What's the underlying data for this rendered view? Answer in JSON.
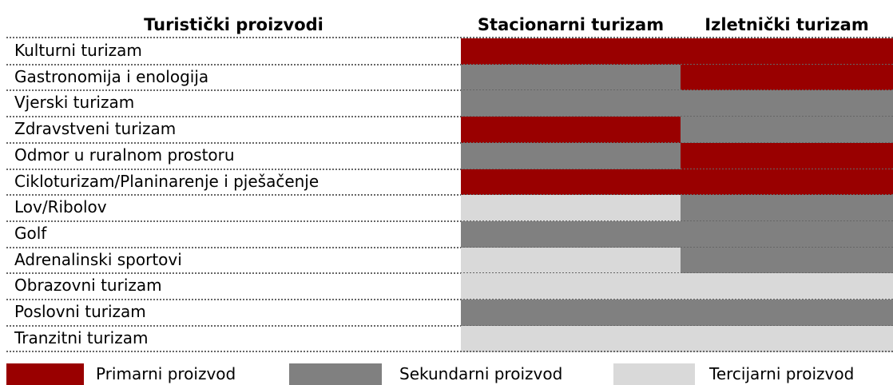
{
  "table": {
    "headers": [
      "Turistički proizvodi",
      "Stacionarni turizam",
      "Izletnički turizam"
    ],
    "rows": [
      {
        "label": "Kulturni turizam",
        "cells": [
          "Primarni proizvod",
          "Primarni proizvod"
        ]
      },
      {
        "label": "Gastronomija i enologija",
        "cells": [
          "Sekundarni proizvod",
          "Primarni proizvod"
        ]
      },
      {
        "label": "Vjerski turizam",
        "cells": [
          "Sekundarni proizvod",
          "Sekundarni proizvod"
        ]
      },
      {
        "label": "Zdravstveni turizam",
        "cells": [
          "Primarni proizvod",
          "Sekundarni proizvod"
        ]
      },
      {
        "label": "Odmor u ruralnom prostoru",
        "cells": [
          "Sekundarni proizvod",
          "Primarni proizvod"
        ]
      },
      {
        "label": "Cikloturizam/Planinarenje i pješačenje",
        "cells": [
          "Primarni proizvod",
          "Primarni proizvod"
        ]
      },
      {
        "label": "Lov/Ribolov",
        "cells": [
          "Tercijarni proizvod",
          "Sekundarni proizvod"
        ]
      },
      {
        "label": "Golf",
        "cells": [
          "Sekundarni proizvod",
          "Sekundarni proizvod"
        ]
      },
      {
        "label": "Adrenalinski sportovi",
        "cells": [
          "Tercijarni proizvod",
          "Sekundarni proizvod"
        ]
      },
      {
        "label": "Obrazovni turizam",
        "cells": [
          "Tercijarni proizvod",
          "Tercijarni proizvod"
        ]
      },
      {
        "label": "Poslovni turizam",
        "cells": [
          "Sekundarni proizvod",
          "Sekundarni proizvod"
        ]
      },
      {
        "label": "Tranzitni turizam",
        "cells": [
          "Tercijarni proizvod",
          "Tercijarni proizvod"
        ]
      }
    ]
  },
  "legend": [
    {
      "label": "Primarni proizvod",
      "color": "#990000"
    },
    {
      "label": "Sekundarni proizvod",
      "color": "#808080"
    },
    {
      "label": "Tercijarni proizvod",
      "color": "#d9d9d9"
    }
  ]
}
